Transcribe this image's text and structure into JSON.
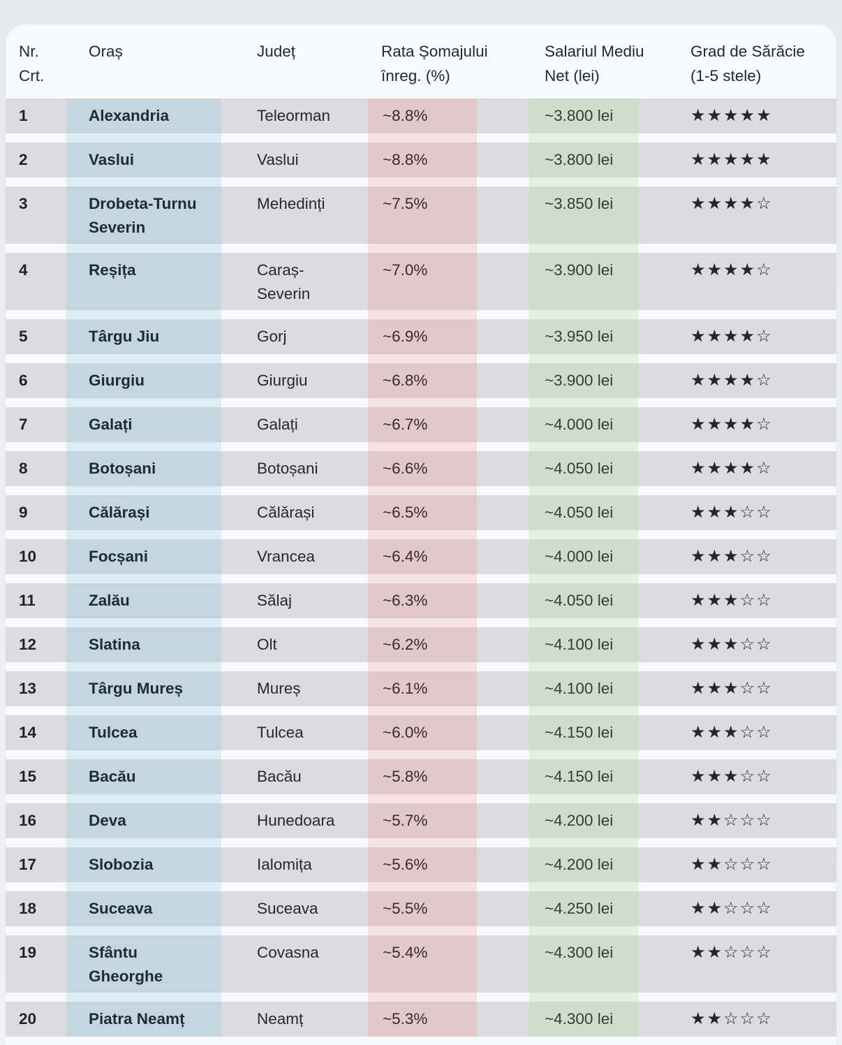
{
  "chart_data": {
    "type": "table",
    "title": "",
    "columns": [
      {
        "id": "nr",
        "label": "Nr.\nCrt."
      },
      {
        "id": "oras",
        "label": "Oraș"
      },
      {
        "id": "judet",
        "label": "Județ"
      },
      {
        "id": "rata",
        "label": "Rata Șomajului\nînreg. (%)"
      },
      {
        "id": "salariu",
        "label": "Salariul Mediu\nNet (lei)"
      },
      {
        "id": "stele",
        "label": "Grad de Sărăcie\n(1-5 stele)"
      }
    ],
    "rows": [
      {
        "nr": "1",
        "oras": "Alexandria",
        "judet": "Teleorman",
        "rata": "~8.8%",
        "salariu": "~3.800 lei",
        "stele_filled": 5,
        "stele": "★★★★★"
      },
      {
        "nr": "2",
        "oras": "Vaslui",
        "judet": "Vaslui",
        "rata": "~8.8%",
        "salariu": "~3.800 lei",
        "stele_filled": 5,
        "stele": "★★★★★"
      },
      {
        "nr": "3",
        "oras": "Drobeta-Turnu\nSeverin",
        "judet": "Mehedinți",
        "rata": "~7.5%",
        "salariu": "~3.850 lei",
        "stele_filled": 4,
        "stele": "★★★★☆"
      },
      {
        "nr": "4",
        "oras": "Reșița",
        "judet": "Caraș-\nSeverin",
        "rata": "~7.0%",
        "salariu": "~3.900 lei",
        "stele_filled": 4,
        "stele": "★★★★☆"
      },
      {
        "nr": "5",
        "oras": "Târgu Jiu",
        "judet": "Gorj",
        "rata": "~6.9%",
        "salariu": "~3.950 lei",
        "stele_filled": 4,
        "stele": "★★★★☆"
      },
      {
        "nr": "6",
        "oras": "Giurgiu",
        "judet": "Giurgiu",
        "rata": "~6.8%",
        "salariu": "~3.900 lei",
        "stele_filled": 4,
        "stele": "★★★★☆"
      },
      {
        "nr": "7",
        "oras": "Galați",
        "judet": "Galați",
        "rata": "~6.7%",
        "salariu": "~4.000 lei",
        "stele_filled": 4,
        "stele": "★★★★☆"
      },
      {
        "nr": "8",
        "oras": "Botoșani",
        "judet": "Botoșani",
        "rata": "~6.6%",
        "salariu": "~4.050 lei",
        "stele_filled": 4,
        "stele": "★★★★☆"
      },
      {
        "nr": "9",
        "oras": "Călărași",
        "judet": "Călărași",
        "rata": "~6.5%",
        "salariu": "~4.050 lei",
        "stele_filled": 3,
        "stele": "★★★☆☆"
      },
      {
        "nr": "10",
        "oras": "Focșani",
        "judet": "Vrancea",
        "rata": "~6.4%",
        "salariu": "~4.000 lei",
        "stele_filled": 3,
        "stele": "★★★☆☆"
      },
      {
        "nr": "11",
        "oras": "Zalău",
        "judet": "Sălaj",
        "rata": "~6.3%",
        "salariu": "~4.050 lei",
        "stele_filled": 3,
        "stele": "★★★☆☆"
      },
      {
        "nr": "12",
        "oras": "Slatina",
        "judet": "Olt",
        "rata": "~6.2%",
        "salariu": "~4.100 lei",
        "stele_filled": 3,
        "stele": "★★★☆☆"
      },
      {
        "nr": "13",
        "oras": "Târgu Mureș",
        "judet": "Mureș",
        "rata": "~6.1%",
        "salariu": "~4.100 lei",
        "stele_filled": 3,
        "stele": "★★★☆☆"
      },
      {
        "nr": "14",
        "oras": "Tulcea",
        "judet": "Tulcea",
        "rata": "~6.0%",
        "salariu": "~4.150 lei",
        "stele_filled": 3,
        "stele": "★★★☆☆"
      },
      {
        "nr": "15",
        "oras": "Bacău",
        "judet": "Bacău",
        "rata": "~5.8%",
        "salariu": "~4.150 lei",
        "stele_filled": 3,
        "stele": "★★★☆☆"
      },
      {
        "nr": "16",
        "oras": "Deva",
        "judet": "Hunedoara",
        "rata": "~5.7%",
        "salariu": "~4.200 lei",
        "stele_filled": 2,
        "stele": "★★☆☆☆"
      },
      {
        "nr": "17",
        "oras": "Slobozia",
        "judet": "Ialomița",
        "rata": "~5.6%",
        "salariu": "~4.200 lei",
        "stele_filled": 2,
        "stele": "★★☆☆☆"
      },
      {
        "nr": "18",
        "oras": "Suceava",
        "judet": "Suceava",
        "rata": "~5.5%",
        "salariu": "~4.250 lei",
        "stele_filled": 2,
        "stele": "★★☆☆☆"
      },
      {
        "nr": "19",
        "oras": "Sfântu\nGheorghe",
        "judet": "Covasna",
        "rata": "~5.4%",
        "salariu": "~4.300 lei",
        "stele_filled": 2,
        "stele": "★★☆☆☆"
      },
      {
        "nr": "20",
        "oras": "Piatra Neamț",
        "judet": "Neamț",
        "rata": "~5.3%",
        "salariu": "~4.300 lei",
        "stele_filled": 2,
        "stele": "★★☆☆☆"
      }
    ]
  },
  "colors": {
    "row_bg": "#dcdcde",
    "city_cell_bg": "#c6d6e0",
    "rate_cell_bg": "#e2c8cb",
    "salary_cell_bg": "#cfdeca",
    "city_stripe_bg": "#ddecf5",
    "rate_stripe_bg": "#f4e1e3",
    "salary_stripe_bg": "#e3f1de"
  }
}
